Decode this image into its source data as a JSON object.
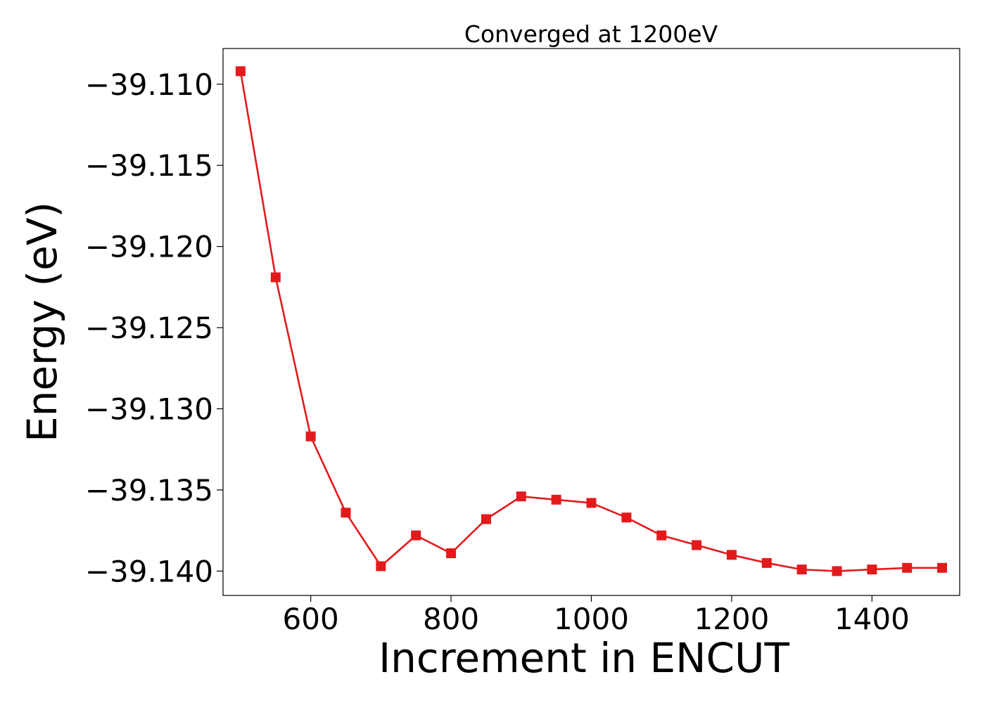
{
  "chart_data": {
    "type": "line",
    "title": "Converged at 1200eV",
    "xlabel": "Increment in ENCUT",
    "ylabel": "Energy (eV)",
    "xlim": [
      475,
      1525
    ],
    "ylim": [
      -39.1415,
      -39.1078
    ],
    "xticks": [
      600,
      800,
      1000,
      1200,
      1400
    ],
    "xtick_labels": [
      "600",
      "800",
      "1000",
      "1200",
      "1400"
    ],
    "yticks": [
      -39.11,
      -39.115,
      -39.12,
      -39.125,
      -39.13,
      -39.135,
      -39.14
    ],
    "ytick_labels": [
      "−39.110",
      "−39.115",
      "−39.120",
      "−39.125",
      "−39.130",
      "−39.135",
      "−39.140"
    ],
    "grid": false,
    "series": [
      {
        "color": "#e31a1c",
        "marker": "square",
        "x": [
          500,
          550,
          600,
          650,
          700,
          750,
          800,
          850,
          900,
          950,
          1000,
          1050,
          1100,
          1150,
          1200,
          1250,
          1300,
          1350,
          1400,
          1450,
          1500
        ],
        "y": [
          -39.1092,
          -39.1219,
          -39.1317,
          -39.1364,
          -39.1397,
          -39.1378,
          -39.1389,
          -39.1368,
          -39.1354,
          -39.1356,
          -39.1358,
          -39.1367,
          -39.1378,
          -39.1384,
          -39.139,
          -39.1395,
          -39.1399,
          -39.14,
          -39.1399,
          -39.1398,
          -39.1398
        ]
      }
    ]
  }
}
